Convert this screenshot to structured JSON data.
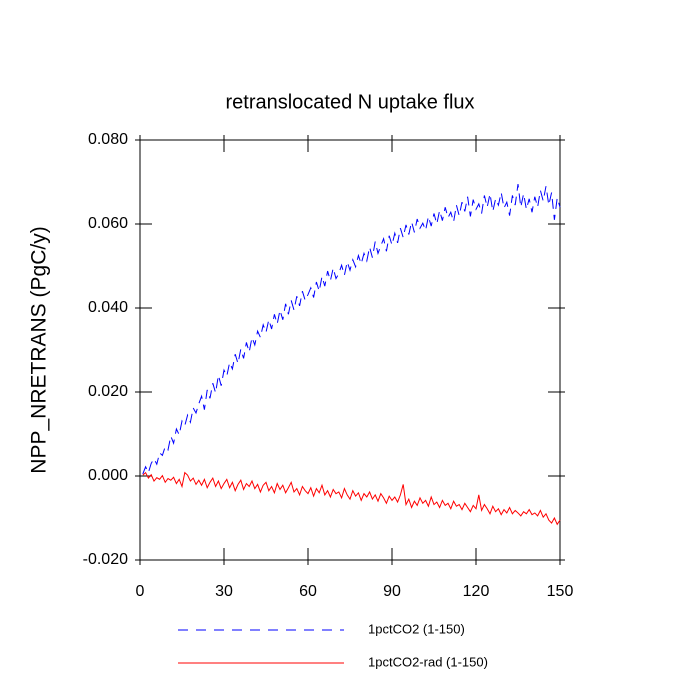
{
  "chart_data": {
    "type": "line",
    "title": "retranslocated N uptake flux",
    "y_label": "NPP_NRETRANS  (PgC/y)",
    "xlim": [
      0,
      150
    ],
    "xticks": [
      0,
      30,
      60,
      90,
      120,
      150
    ],
    "ylim": [
      -0.02,
      0.08
    ],
    "yticks": [
      {
        "value": -0.02,
        "label": "-0.020"
      },
      {
        "value": 0,
        "label": "0.000"
      },
      {
        "value": 0.02,
        "label": "0.020"
      },
      {
        "value": 0.04,
        "label": "0.040"
      },
      {
        "value": 0.06,
        "label": "0.060"
      },
      {
        "value": 0.08,
        "label": "0.080"
      }
    ],
    "x": [
      1,
      2,
      3,
      4,
      5,
      6,
      7,
      8,
      9,
      10,
      11,
      12,
      13,
      14,
      15,
      16,
      17,
      18,
      19,
      20,
      21,
      22,
      23,
      24,
      25,
      26,
      27,
      28,
      29,
      30,
      31,
      32,
      33,
      34,
      35,
      36,
      37,
      38,
      39,
      40,
      41,
      42,
      43,
      44,
      45,
      46,
      47,
      48,
      49,
      50,
      51,
      52,
      53,
      54,
      55,
      56,
      57,
      58,
      59,
      60,
      61,
      62,
      63,
      64,
      65,
      66,
      67,
      68,
      69,
      70,
      71,
      72,
      73,
      74,
      75,
      76,
      77,
      78,
      79,
      80,
      81,
      82,
      83,
      84,
      85,
      86,
      87,
      88,
      89,
      90,
      91,
      92,
      93,
      94,
      95,
      96,
      97,
      98,
      99,
      100,
      101,
      102,
      103,
      104,
      105,
      106,
      107,
      108,
      109,
      110,
      111,
      112,
      113,
      114,
      115,
      116,
      117,
      118,
      119,
      120,
      121,
      122,
      123,
      124,
      125,
      126,
      127,
      128,
      129,
      130,
      131,
      132,
      133,
      134,
      135,
      136,
      137,
      138,
      139,
      140,
      141,
      142,
      143,
      144,
      145,
      146,
      147,
      148,
      149,
      150
    ],
    "series": [
      {
        "name": "1pctCO2 (1-150)",
        "color": "#0000ff",
        "dashed": true,
        "values": [
          0.0005,
          0.0022,
          0.0008,
          0.003,
          0.0041,
          0.0028,
          0.0055,
          0.0049,
          0.007,
          0.0062,
          0.0095,
          0.0078,
          0.0112,
          0.0098,
          0.0131,
          0.012,
          0.0145,
          0.0128,
          0.0162,
          0.015,
          0.0172,
          0.019,
          0.0158,
          0.0205,
          0.0185,
          0.0221,
          0.0198,
          0.024,
          0.0215,
          0.0252,
          0.0238,
          0.027,
          0.0255,
          0.029,
          0.0268,
          0.0302,
          0.028,
          0.0318,
          0.0295,
          0.033,
          0.0312,
          0.0345,
          0.033,
          0.036,
          0.0342,
          0.0372,
          0.035,
          0.0385,
          0.0362,
          0.0395,
          0.0372,
          0.041,
          0.0385,
          0.0418,
          0.0395,
          0.0428,
          0.0405,
          0.044,
          0.0418,
          0.0432,
          0.0448,
          0.0425,
          0.0462,
          0.044,
          0.0475,
          0.0452,
          0.0488,
          0.0465,
          0.0495,
          0.047,
          0.0482,
          0.0502,
          0.0478,
          0.051,
          0.049,
          0.0515,
          0.0498,
          0.0525,
          0.0505,
          0.053,
          0.0512,
          0.0545,
          0.052,
          0.0558,
          0.053,
          0.0548,
          0.0565,
          0.0535,
          0.0572,
          0.055,
          0.0578,
          0.0555,
          0.059,
          0.0568,
          0.0598,
          0.0575,
          0.0605,
          0.058,
          0.0612,
          0.059,
          0.0602,
          0.0585,
          0.0618,
          0.0595,
          0.0625,
          0.06,
          0.0632,
          0.0608,
          0.064,
          0.0615,
          0.0628,
          0.0605,
          0.0645,
          0.062,
          0.0652,
          0.063,
          0.0665,
          0.0618,
          0.0658,
          0.0635,
          0.0648,
          0.0625,
          0.0668,
          0.064,
          0.0672,
          0.063,
          0.066,
          0.0645,
          0.0675,
          0.0638,
          0.0652,
          0.062,
          0.0668,
          0.0645,
          0.0695,
          0.064,
          0.0672,
          0.0635,
          0.066,
          0.0628,
          0.0665,
          0.064,
          0.068,
          0.0655,
          0.069,
          0.0645,
          0.0675,
          0.061,
          0.0662,
          0.064
        ]
      },
      {
        "name": "1pctCO2-rad (1-150)",
        "color": "#ff0000",
        "dashed": false,
        "values": [
          0.0002,
          0.0008,
          -0.0005,
          0.0003,
          -0.0012,
          -0.0004,
          -0.0008,
          0.0001,
          -0.0015,
          -0.0006,
          -0.001,
          -0.0003,
          -0.0018,
          -0.0008,
          -0.0025,
          0.0008,
          0.0002,
          -0.0012,
          -0.0005,
          -0.002,
          -0.001,
          -0.0022,
          -0.0008,
          -0.0028,
          -0.0015,
          -0.0005,
          -0.0025,
          -0.0012,
          -0.003,
          -0.0018,
          -0.0008,
          -0.0028,
          -0.0015,
          -0.0035,
          -0.002,
          -0.001,
          -0.0032,
          -0.0018,
          -0.0025,
          -0.0012,
          -0.003,
          -0.002,
          -0.0038,
          -0.0022,
          -0.0015,
          -0.0035,
          -0.0025,
          -0.004,
          -0.0018,
          -0.0032,
          -0.0022,
          -0.004,
          -0.0028,
          -0.0015,
          -0.0038,
          -0.003,
          -0.0045,
          -0.0025,
          -0.0035,
          -0.0042,
          -0.0028,
          -0.0048,
          -0.003,
          -0.004,
          -0.0022,
          -0.0045,
          -0.0035,
          -0.005,
          -0.0032,
          -0.0042,
          -0.0038,
          -0.0052,
          -0.003,
          -0.0045,
          -0.0055,
          -0.0035,
          -0.0048,
          -0.004,
          -0.0058,
          -0.0042,
          -0.005,
          -0.0038,
          -0.0055,
          -0.0045,
          -0.006,
          -0.0042,
          -0.0052,
          -0.0065,
          -0.0048,
          -0.0058,
          -0.005,
          -0.0062,
          -0.0045,
          -0.002,
          -0.0068,
          -0.0055,
          -0.0075,
          -0.006,
          -0.007,
          -0.0052,
          -0.0065,
          -0.0058,
          -0.0072,
          -0.005,
          -0.0068,
          -0.0062,
          -0.0075,
          -0.0058,
          -0.007,
          -0.0065,
          -0.0078,
          -0.006,
          -0.0072,
          -0.0068,
          -0.008,
          -0.0065,
          -0.0075,
          -0.0085,
          -0.007,
          -0.0078,
          -0.0045,
          -0.0082,
          -0.0068,
          -0.0078,
          -0.009,
          -0.0072,
          -0.0085,
          -0.0078,
          -0.0092,
          -0.008,
          -0.0088,
          -0.0075,
          -0.009,
          -0.0082,
          -0.0088,
          -0.0095,
          -0.0085,
          -0.009,
          -0.008,
          -0.0092,
          -0.0088,
          -0.0095,
          -0.0082,
          -0.0098,
          -0.009,
          -0.0105,
          -0.0112,
          -0.01,
          -0.0115,
          -0.0105
        ]
      }
    ]
  }
}
